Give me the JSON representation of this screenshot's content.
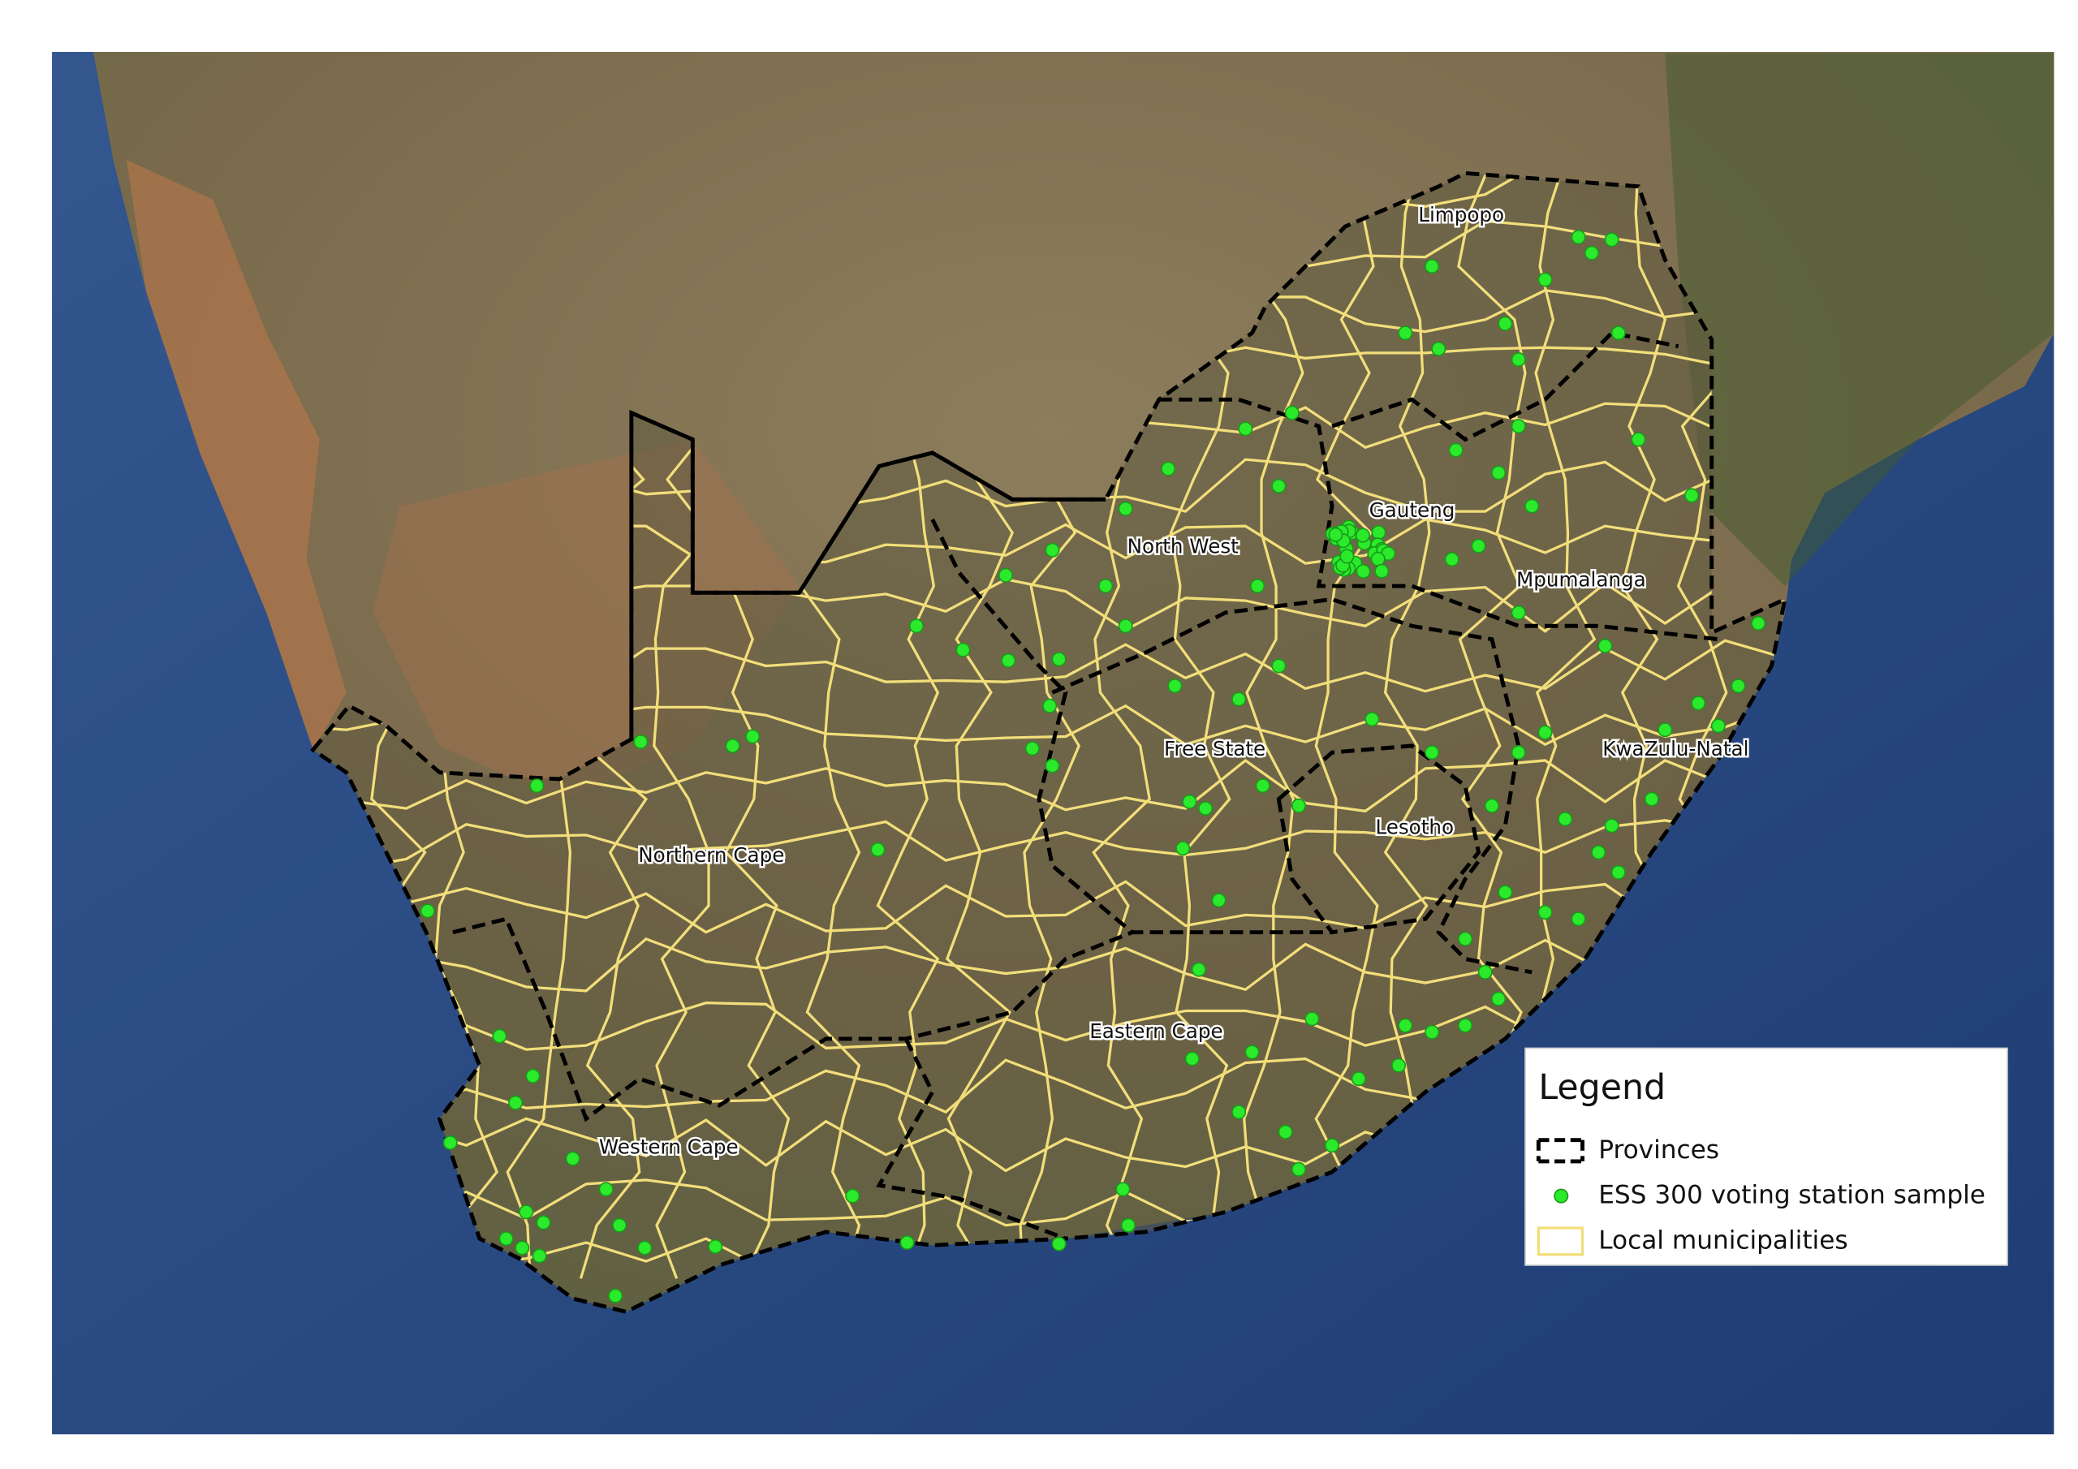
{
  "map": {
    "labels": [
      "Limpopo",
      "North West",
      "Gauteng",
      "Mpumalanga",
      "Free State",
      "KwaZulu-Natal",
      "Lesotho",
      "Northern Cape",
      "Eastern Cape",
      "Western Cape"
    ]
  },
  "legend": {
    "title": "Legend",
    "items": [
      "Provinces",
      "ESS 300 voting station sample",
      "Local municipalities"
    ]
  }
}
